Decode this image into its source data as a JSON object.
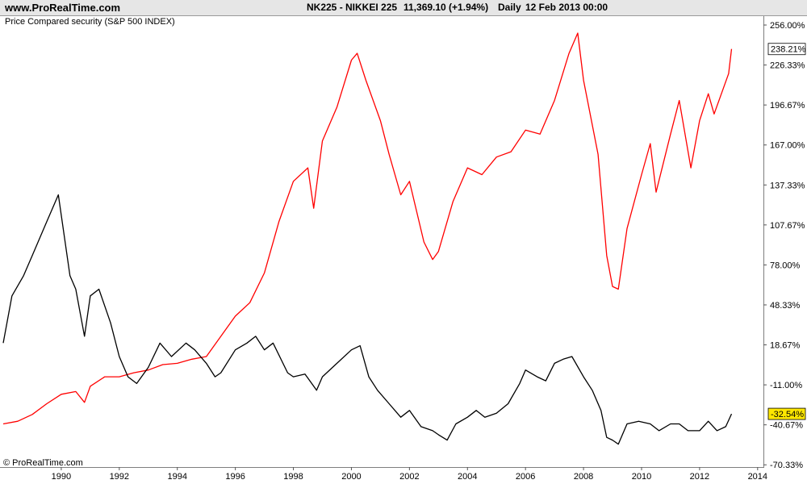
{
  "header": {
    "site": "www.ProRealTime.com",
    "instrument": "NK225 - NIKKEI 225",
    "price": "11,369.10 (+1.94%)",
    "period": "Daily",
    "datetime": "12 Feb 2013 00:00"
  },
  "subtitle": "Price Compared security (S&P 500 INDEX)",
  "copyright": "© ProRealTime.com",
  "colors": {
    "nikkei": "#000000",
    "sp500": "#ff0000",
    "sp500_badge": "#ffffff",
    "nikkei_badge": "#ffe800"
  },
  "chart_data": {
    "type": "line",
    "title": "",
    "xlabel": "",
    "ylabel": "",
    "x_ticks": [
      "1990",
      "1992",
      "1994",
      "1996",
      "1998",
      "2000",
      "2002",
      "2004",
      "2006",
      "2008",
      "2010",
      "2012",
      "2014"
    ],
    "y_ticks": [
      "256.00%",
      "226.33%",
      "196.67%",
      "167.00%",
      "137.33%",
      "107.67%",
      "78.00%",
      "48.33%",
      "18.67%",
      "-11.00%",
      "-40.67%",
      "-70.33%"
    ],
    "ylim": [
      -72,
      262
    ],
    "xlim": [
      1988.0,
      2014.2
    ],
    "last_values": {
      "sp500": "238.21%",
      "nikkei": "-32.54%"
    },
    "series": [
      {
        "name": "S&P 500 INDEX",
        "x": [
          1988.0,
          1988.5,
          1989.0,
          1989.5,
          1990.0,
          1990.5,
          1990.8,
          1991.0,
          1991.5,
          1992.0,
          1992.5,
          1993.0,
          1993.5,
          1994.0,
          1994.5,
          1995.0,
          1995.5,
          1996.0,
          1996.5,
          1997.0,
          1997.5,
          1998.0,
          1998.5,
          1998.7,
          1999.0,
          1999.5,
          2000.0,
          2000.2,
          2000.5,
          2001.0,
          2001.3,
          2001.7,
          2002.0,
          2002.5,
          2002.8,
          2003.0,
          2003.5,
          2004.0,
          2004.5,
          2005.0,
          2005.5,
          2006.0,
          2006.5,
          2007.0,
          2007.5,
          2007.8,
          2008.0,
          2008.5,
          2008.8,
          2009.0,
          2009.2,
          2009.5,
          2010.0,
          2010.3,
          2010.5,
          2011.0,
          2011.3,
          2011.7,
          2012.0,
          2012.3,
          2012.5,
          2013.0,
          2013.1
        ],
        "values": [
          -40.0,
          -38.0,
          -33.0,
          -25.0,
          -18.0,
          -16.0,
          -24.0,
          -12.0,
          -5.0,
          -5.0,
          -2.0,
          0.0,
          4.0,
          5.0,
          8.0,
          10.0,
          25.0,
          40.0,
          50.0,
          72.0,
          110.0,
          140.0,
          150.0,
          120.0,
          170.0,
          195.0,
          230.0,
          235.0,
          215.0,
          185.0,
          160.0,
          130.0,
          140.0,
          95.0,
          82.0,
          88.0,
          125.0,
          150.0,
          145.0,
          158.0,
          162.0,
          178.0,
          175.0,
          200.0,
          235.0,
          250.0,
          215.0,
          160.0,
          85.0,
          62.0,
          60.0,
          105.0,
          145.0,
          168.0,
          132.0,
          175.0,
          200.0,
          150.0,
          185.0,
          205.0,
          190.0,
          220.0,
          238.21
        ]
      },
      {
        "name": "NK225 - NIKKEI 225",
        "x": [
          1988.0,
          1988.3,
          1988.7,
          1989.0,
          1989.5,
          1989.9,
          1990.0,
          1990.3,
          1990.5,
          1990.8,
          1991.0,
          1991.3,
          1991.7,
          1992.0,
          1992.3,
          1992.6,
          1993.0,
          1993.4,
          1993.8,
          1994.3,
          1994.6,
          1995.0,
          1995.3,
          1995.5,
          1996.0,
          1996.4,
          1996.7,
          1997.0,
          1997.3,
          1997.8,
          1998.0,
          1998.4,
          1998.8,
          1999.0,
          1999.5,
          2000.0,
          2000.3,
          2000.6,
          2000.9,
          2001.3,
          2001.7,
          2002.0,
          2002.4,
          2002.8,
          2003.0,
          2003.3,
          2003.6,
          2004.0,
          2004.3,
          2004.6,
          2005.0,
          2005.4,
          2005.8,
          2006.0,
          2006.4,
          2006.7,
          2007.0,
          2007.3,
          2007.6,
          2008.0,
          2008.3,
          2008.6,
          2008.8,
          2009.0,
          2009.2,
          2009.5,
          2009.9,
          2010.3,
          2010.6,
          2011.0,
          2011.3,
          2011.6,
          2012.0,
          2012.3,
          2012.6,
          2012.9,
          2013.1
        ],
        "values": [
          20.0,
          55.0,
          70.0,
          85.0,
          110.0,
          130.0,
          115.0,
          70.0,
          60.0,
          25.0,
          55.0,
          60.0,
          35.0,
          10.0,
          -5.0,
          -10.0,
          2.0,
          20.0,
          10.0,
          20.0,
          15.0,
          5.0,
          -5.0,
          -2.0,
          15.0,
          20.0,
          25.0,
          15.0,
          20.0,
          -2.0,
          -5.0,
          -3.0,
          -15.0,
          -5.0,
          5.0,
          15.0,
          18.0,
          -5.0,
          -15.0,
          -25.0,
          -35.0,
          -30.0,
          -42.0,
          -45.0,
          -48.0,
          -52.0,
          -40.0,
          -35.0,
          -30.0,
          -35.0,
          -32.0,
          -25.0,
          -10.0,
          0.0,
          -5.0,
          -8.0,
          5.0,
          8.0,
          10.0,
          -5.0,
          -15.0,
          -30.0,
          -50.0,
          -52.0,
          -55.0,
          -40.0,
          -38.0,
          -40.0,
          -45.0,
          -40.0,
          -40.0,
          -45.0,
          -45.0,
          -38.0,
          -45.0,
          -42.0,
          -32.54
        ]
      }
    ]
  }
}
